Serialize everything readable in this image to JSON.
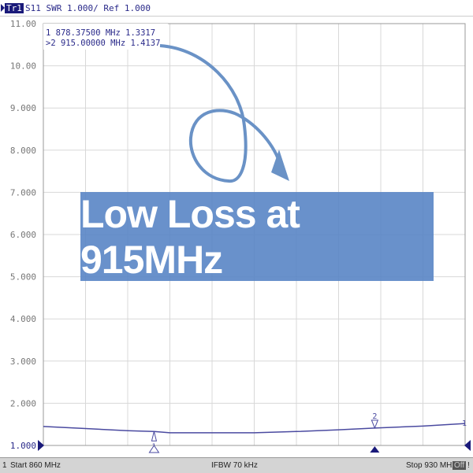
{
  "header": {
    "trace": "Tr1",
    "text": "S11 SWR 1.000/ Ref 1.000"
  },
  "markers": [
    {
      "label": "1",
      "text": "1  878.37500 MHz  1.3317",
      "freq": 878.375,
      "value": 1.3317
    },
    {
      "label": "2",
      "text": ">2  915.00000 MHz  1.4137",
      "freq": 915.0,
      "value": 1.4137
    }
  ],
  "overlay": {
    "text": "Low Loss at 915MHz"
  },
  "status": {
    "channel": "1",
    "start": "Start 860 MHz",
    "ifbw": "IFBW 70 kHz",
    "stop": "Stop 930 MHz",
    "off": "Off",
    "bang": "!"
  },
  "chart_data": {
    "type": "line",
    "xlim": [
      860,
      930
    ],
    "ylim": [
      1,
      11
    ],
    "ytick_labels": [
      "11.00",
      "10.00",
      "9.000",
      "8.000",
      "7.000",
      "6.000",
      "5.000",
      "4.000",
      "3.000",
      "2.000",
      "1.000"
    ],
    "grid": true,
    "trace_color": "#4a4aa0",
    "x": [
      860,
      867,
      874,
      878.375,
      881,
      888,
      895,
      902,
      909,
      915,
      923,
      930
    ],
    "y": [
      1.45,
      1.4,
      1.35,
      1.3317,
      1.3,
      1.3,
      1.3,
      1.33,
      1.37,
      1.4137,
      1.46,
      1.52
    ]
  },
  "colors": {
    "overlay": "#5482c4",
    "arrow": "#6a92c6"
  }
}
